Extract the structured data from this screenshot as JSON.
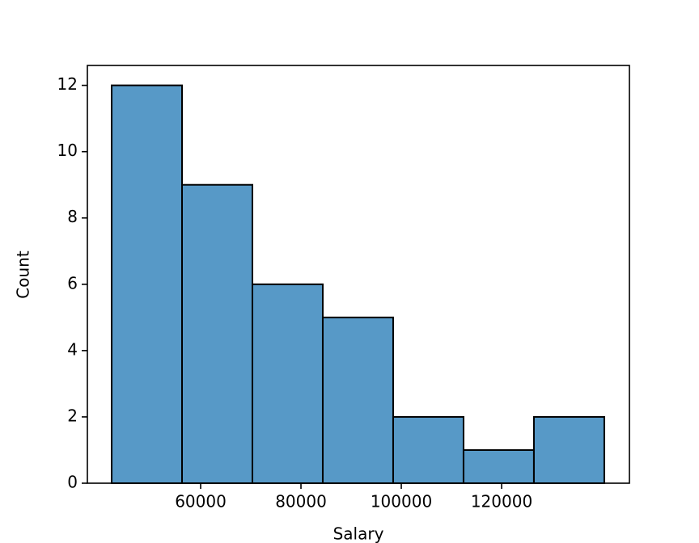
{
  "chart_data": {
    "type": "histogram",
    "x_label": "Salary",
    "y_label": "Count",
    "bins": [
      42260,
      56290,
      70320,
      84350,
      98380,
      112410,
      126440,
      140470
    ],
    "counts": [
      12,
      9,
      6,
      5,
      2,
      1,
      2
    ],
    "color": "#5799c7",
    "edge_color": "#000000",
    "xlim": [
      37420,
      145480
    ],
    "xticks": [
      60000,
      80000,
      100000,
      120000
    ],
    "ylim": [
      0,
      12.6
    ],
    "yticks": [
      0,
      2,
      4,
      6,
      8,
      10,
      12
    ]
  }
}
